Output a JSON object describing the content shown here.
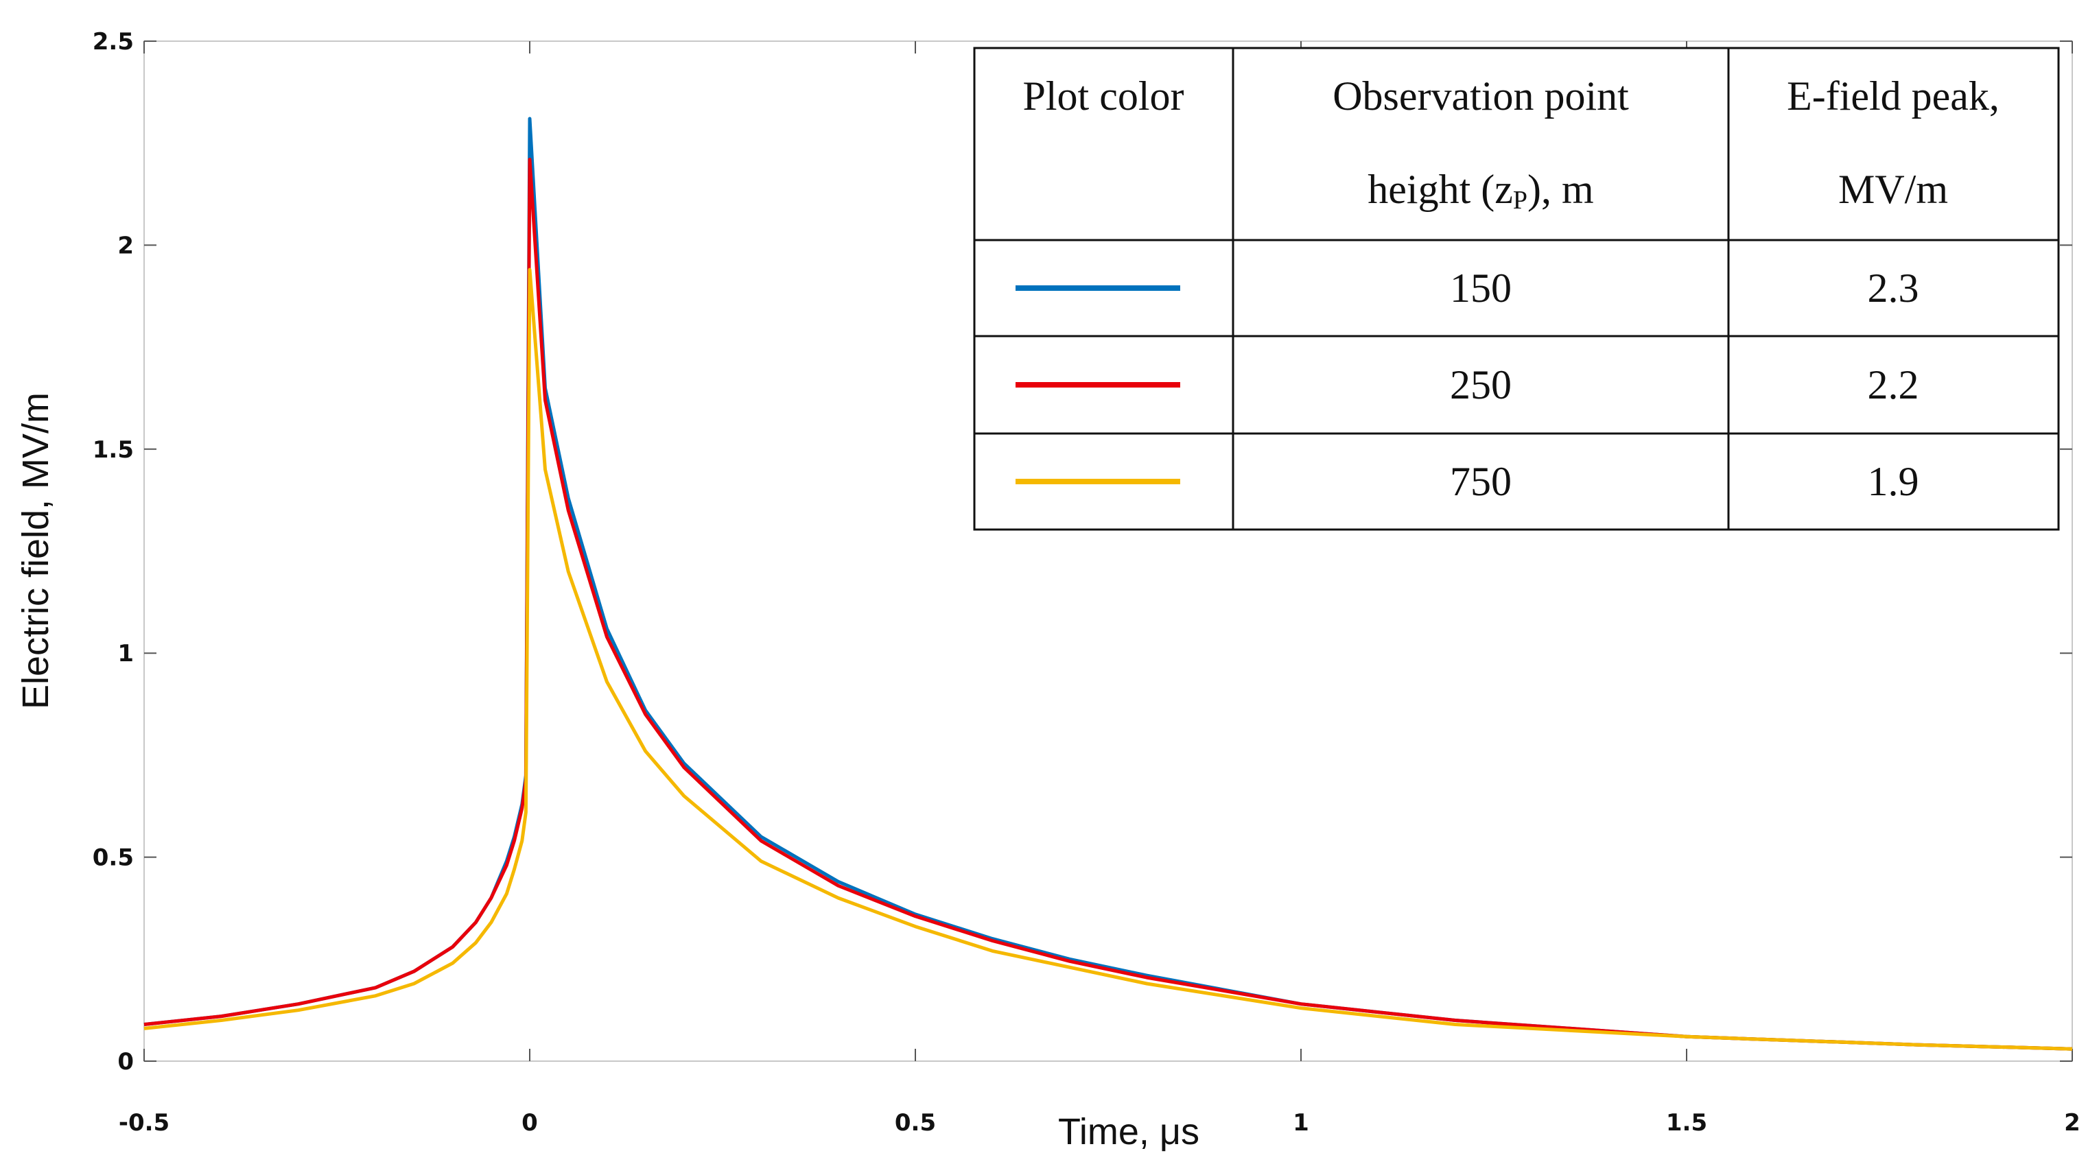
{
  "chart_data": {
    "type": "line",
    "xlabel": "Time, μs",
    "ylabel": "Electric field, MV/m",
    "xlim": [
      -0.5,
      2
    ],
    "ylim": [
      0,
      2.5
    ],
    "x_ticks": [
      "-0.5",
      "0",
      "0.5",
      "1",
      "1.5",
      "2"
    ],
    "y_ticks": [
      "0",
      "0.5",
      "1",
      "1.5",
      "2",
      "2.5"
    ],
    "grid": false,
    "series": [
      {
        "name": "150",
        "color": "#0072BD",
        "peak": 2.3,
        "x": [
          -0.5,
          -0.4,
          -0.3,
          -0.2,
          -0.15,
          -0.1,
          -0.07,
          -0.05,
          -0.03,
          -0.02,
          -0.01,
          -0.005,
          0,
          0.02,
          0.05,
          0.1,
          0.15,
          0.2,
          0.3,
          0.4,
          0.5,
          0.6,
          0.7,
          0.8,
          1.0,
          1.2,
          1.5,
          1.8,
          2.0
        ],
        "y": [
          0.09,
          0.11,
          0.14,
          0.18,
          0.22,
          0.28,
          0.34,
          0.4,
          0.49,
          0.55,
          0.63,
          0.7,
          2.31,
          1.65,
          1.38,
          1.06,
          0.86,
          0.73,
          0.55,
          0.44,
          0.36,
          0.3,
          0.25,
          0.21,
          0.14,
          0.1,
          0.06,
          0.04,
          0.03
        ]
      },
      {
        "name": "250",
        "color": "#E8000B",
        "peak": 2.2,
        "x": [
          -0.5,
          -0.4,
          -0.3,
          -0.2,
          -0.15,
          -0.1,
          -0.07,
          -0.05,
          -0.03,
          -0.02,
          -0.01,
          -0.005,
          0,
          0.02,
          0.05,
          0.1,
          0.15,
          0.2,
          0.3,
          0.4,
          0.5,
          0.6,
          0.7,
          0.8,
          1.0,
          1.2,
          1.5,
          1.8,
          2.0
        ],
        "y": [
          0.09,
          0.11,
          0.14,
          0.18,
          0.22,
          0.28,
          0.34,
          0.4,
          0.48,
          0.54,
          0.62,
          0.69,
          2.21,
          1.62,
          1.35,
          1.04,
          0.85,
          0.72,
          0.54,
          0.43,
          0.355,
          0.295,
          0.245,
          0.205,
          0.14,
          0.1,
          0.06,
          0.04,
          0.03
        ]
      },
      {
        "name": "750",
        "color": "#F5B800",
        "peak": 1.9,
        "x": [
          -0.5,
          -0.4,
          -0.3,
          -0.2,
          -0.15,
          -0.1,
          -0.07,
          -0.05,
          -0.03,
          -0.02,
          -0.01,
          -0.005,
          0,
          0.02,
          0.05,
          0.1,
          0.15,
          0.2,
          0.3,
          0.4,
          0.5,
          0.6,
          0.7,
          0.8,
          1.0,
          1.2,
          1.5,
          1.8,
          2.0
        ],
        "y": [
          0.08,
          0.1,
          0.125,
          0.16,
          0.19,
          0.24,
          0.29,
          0.34,
          0.41,
          0.47,
          0.54,
          0.61,
          1.94,
          1.45,
          1.2,
          0.93,
          0.76,
          0.65,
          0.49,
          0.4,
          0.33,
          0.27,
          0.23,
          0.19,
          0.13,
          0.09,
          0.06,
          0.04,
          0.03
        ]
      }
    ],
    "legend_table": {
      "headers": [
        "Plot color",
        "Observation point",
        "height (z",
        "P",
        "), m",
        "E-field peak,",
        "MV/m"
      ],
      "rows": [
        {
          "height": "150",
          "peak": "2.3"
        },
        {
          "height": "250",
          "peak": "2.2"
        },
        {
          "height": "750",
          "peak": "1.9"
        }
      ]
    }
  }
}
